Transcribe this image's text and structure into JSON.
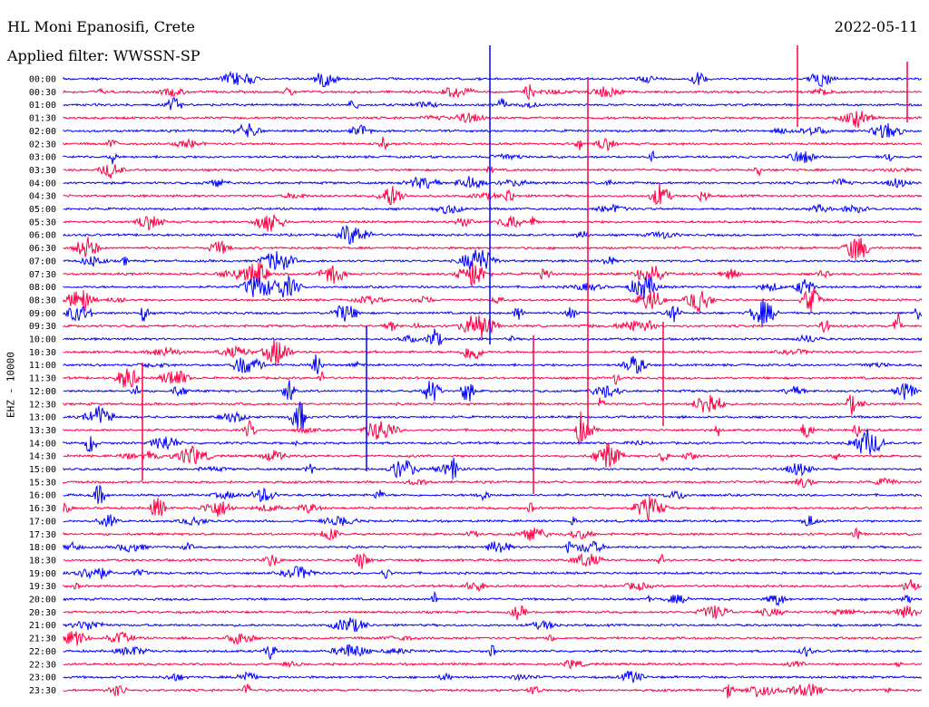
{
  "header": {
    "station": "HL Moni Epanosifi, Crete",
    "date": "2022-05-11",
    "filter_label": "Applied filter: WWSSN-SP"
  },
  "side_label": "EHZ - 10000",
  "colors": {
    "blue": "#0000ff",
    "red": "#ff0044"
  },
  "chart_data": {
    "type": "line",
    "description_free_labels": true,
    "rows": [
      "00:00",
      "00:30",
      "01:00",
      "01:30",
      "02:00",
      "02:30",
      "03:00",
      "03:30",
      "04:00",
      "04:30",
      "05:00",
      "05:30",
      "06:00",
      "06:30",
      "07:00",
      "07:30",
      "08:00",
      "08:30",
      "09:00",
      "09:30",
      "10:00",
      "10:30",
      "11:00",
      "11:30",
      "12:00",
      "12:30",
      "13:00",
      "13:30",
      "14:00",
      "14:30",
      "15:00",
      "15:30",
      "16:00",
      "16:30",
      "17:00",
      "17:30",
      "18:00",
      "18:30",
      "19:00",
      "19:30",
      "20:00",
      "20:30",
      "21:00",
      "21:30",
      "22:00",
      "22:30",
      "23:00",
      "23:30"
    ],
    "row_colors": [
      "blue",
      "red"
    ],
    "amplitude_scale": 10000,
    "grid": false
  }
}
